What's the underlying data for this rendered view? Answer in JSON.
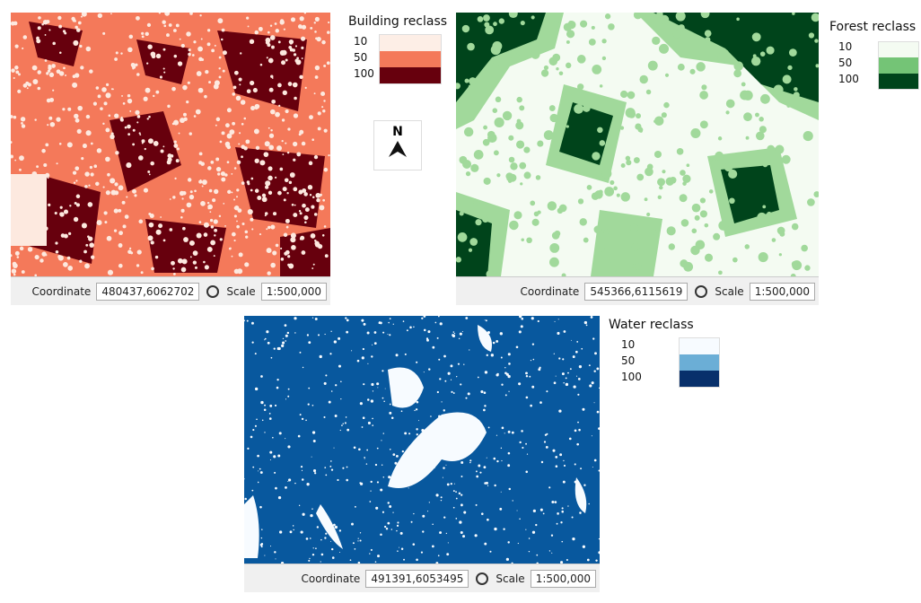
{
  "maps": [
    {
      "legend": {
        "title": "Building reclass",
        "classes": [
          "10",
          "50",
          "100"
        ]
      },
      "status": {
        "coordinate_label": "Coordinate",
        "coordinate": "480437,6062702",
        "scale_label": "Scale",
        "scale": "1:500,000"
      }
    },
    {
      "legend": {
        "title": "Forest reclass",
        "classes": [
          "10",
          "50",
          "100"
        ]
      },
      "status": {
        "coordinate_label": "Coordinate",
        "coordinate": "545366,6115619",
        "scale_label": "Scale",
        "scale": "1:500,000"
      }
    },
    {
      "legend": {
        "title": "Water reclass",
        "classes": [
          "10",
          "50",
          "100"
        ]
      },
      "status": {
        "coordinate_label": "Coordinate",
        "coordinate": "491391,6053495",
        "scale_label": "Scale",
        "scale": "1:500,000"
      }
    }
  ],
  "north_arrow": "N"
}
